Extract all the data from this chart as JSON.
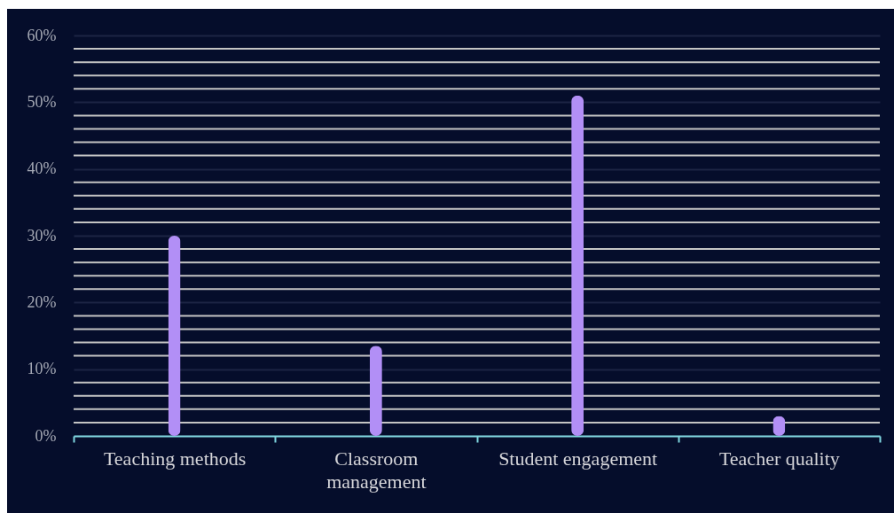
{
  "chart_data": {
    "type": "bar",
    "categories": [
      "Teaching methods",
      "Classroom management",
      "Student engagement",
      "Teacher quality"
    ],
    "values": [
      30,
      13.5,
      51,
      3
    ],
    "color": "#b28ff6",
    "ylim": [
      0,
      60
    ],
    "yticks": [
      {
        "value": 0,
        "label": "0%"
      },
      {
        "value": 10,
        "label": "10%"
      },
      {
        "value": 20,
        "label": "20%"
      },
      {
        "value": 30,
        "label": "30%"
      },
      {
        "value": 40,
        "label": "40%"
      },
      {
        "value": 50,
        "label": "50%"
      },
      {
        "value": 60,
        "label": "60%"
      }
    ],
    "grid": true
  }
}
